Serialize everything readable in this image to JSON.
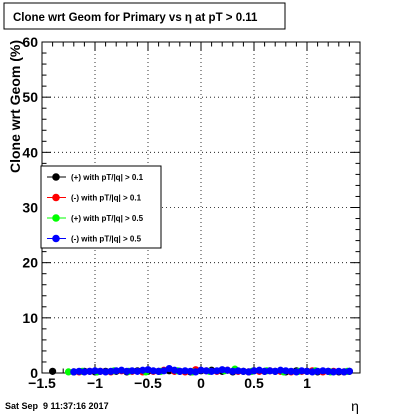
{
  "chart_data": {
    "type": "scatter",
    "title": "Clone wrt Geom for Primary vs   η at pT > 0.11",
    "xlabel": "η",
    "ylabel": "Clone wrt Geom (%)",
    "xlim": [
      -1.5,
      1.5
    ],
    "ylim": [
      0,
      60
    ],
    "x_ticks": [
      -1.5,
      -1,
      -0.5,
      0,
      0.5,
      1
    ],
    "x_tick_labels": [
      "−1.5",
      "−1",
      "−0.5",
      "0",
      "0.5",
      "1"
    ],
    "y_ticks": [
      0,
      10,
      20,
      30,
      40,
      50,
      60
    ],
    "y_tick_labels": [
      "0",
      "10",
      "20",
      "30",
      "40",
      "50",
      "60"
    ],
    "grid": true,
    "legend_position": "middle-left",
    "series": [
      {
        "name": "(+) with pT/|q| > 0.1",
        "color": "#000000",
        "x": [
          -1.4,
          -1.2,
          -1.1,
          -1.0,
          -0.9,
          -0.8,
          -0.7,
          -0.6,
          -0.5,
          -0.4,
          -0.3,
          -0.2,
          -0.1,
          0.0,
          0.1,
          0.2,
          0.3,
          0.4,
          0.5,
          0.6,
          0.7,
          0.8,
          0.9,
          1.0,
          1.1,
          1.2,
          1.3,
          1.4
        ],
        "y": [
          0.3,
          0.2,
          0.3,
          0.2,
          0.3,
          0.3,
          0.2,
          0.4,
          0.3,
          0.3,
          0.4,
          0.3,
          0.2,
          0.4,
          0.5,
          0.3,
          0.2,
          0.3,
          0.4,
          0.3,
          0.3,
          0.2,
          0.4,
          0.3,
          0.2,
          0.3,
          0.2,
          0.3
        ]
      },
      {
        "name": "(-) with pT/|q| > 0.1",
        "color": "#ff0000",
        "x": [
          -1.15,
          -1.05,
          -0.95,
          -0.85,
          -0.75,
          -0.65,
          -0.55,
          -0.45,
          -0.35,
          -0.25,
          -0.15,
          -0.05,
          0.05,
          0.15,
          0.25,
          0.35,
          0.45,
          0.55,
          0.65,
          0.75,
          0.85,
          0.95,
          1.05,
          1.15,
          1.25,
          1.35
        ],
        "y": [
          0.2,
          0.3,
          0.3,
          0.2,
          0.4,
          0.3,
          0.2,
          0.3,
          0.5,
          0.3,
          0.2,
          0.6,
          0.4,
          0.3,
          0.5,
          0.3,
          0.2,
          0.3,
          0.4,
          0.3,
          0.2,
          0.3,
          0.4,
          0.2,
          0.3,
          0.2
        ]
      },
      {
        "name": "(+) with pT/|q| > 0.5",
        "color": "#00ff00",
        "x": [
          -1.25,
          -1.12,
          -0.98,
          -0.82,
          -0.68,
          -0.52,
          -0.38,
          -0.22,
          -0.08,
          0.08,
          0.22,
          0.32,
          0.48,
          0.62,
          0.78,
          0.92,
          1.08,
          1.22,
          1.38
        ],
        "y": [
          0.2,
          0.3,
          0.2,
          0.4,
          0.3,
          0.2,
          0.3,
          0.4,
          0.2,
          0.3,
          0.4,
          0.7,
          0.3,
          0.4,
          0.2,
          0.3,
          0.4,
          0.2,
          0.3
        ]
      },
      {
        "name": "(-) with pT/|q| > 0.5",
        "color": "#0000ff",
        "x": [
          -1.2,
          -1.15,
          -1.1,
          -1.05,
          -1.0,
          -0.95,
          -0.9,
          -0.85,
          -0.8,
          -0.75,
          -0.7,
          -0.65,
          -0.6,
          -0.55,
          -0.5,
          -0.45,
          -0.4,
          -0.35,
          -0.3,
          -0.25,
          -0.2,
          -0.15,
          -0.1,
          -0.05,
          0.0,
          0.05,
          0.1,
          0.15,
          0.2,
          0.25,
          0.3,
          0.35,
          0.4,
          0.45,
          0.5,
          0.55,
          0.6,
          0.65,
          0.7,
          0.75,
          0.8,
          0.85,
          0.9,
          0.95,
          1.0,
          1.05,
          1.1,
          1.15,
          1.2,
          1.25,
          1.3,
          1.35,
          1.4
        ],
        "y": [
          0.2,
          0.3,
          0.2,
          0.3,
          0.4,
          0.3,
          0.2,
          0.3,
          0.4,
          0.5,
          0.3,
          0.4,
          0.3,
          0.5,
          0.6,
          0.4,
          0.3,
          0.4,
          0.8,
          0.5,
          0.3,
          0.4,
          0.3,
          0.2,
          0.5,
          0.4,
          0.3,
          0.4,
          0.6,
          0.5,
          0.3,
          0.4,
          0.3,
          0.2,
          0.4,
          0.5,
          0.3,
          0.4,
          0.3,
          0.5,
          0.4,
          0.3,
          0.2,
          0.4,
          0.3,
          0.2,
          0.3,
          0.4,
          0.3,
          0.2,
          0.3,
          0.2,
          0.3
        ]
      }
    ]
  },
  "footer": {
    "timestamp": "Sat Sep  9 11:37:16 2017"
  }
}
